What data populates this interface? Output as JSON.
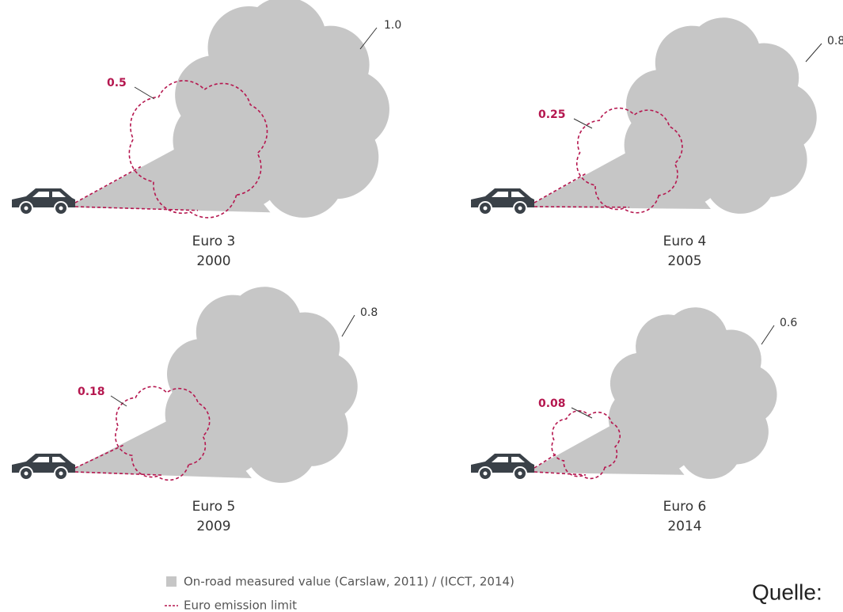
{
  "panels": [
    {
      "name": "Euro 3",
      "year": "2000",
      "measured": "1.0",
      "limit": "0.5"
    },
    {
      "name": "Euro 4",
      "year": "2005",
      "measured": "0.8",
      "limit": "0.25"
    },
    {
      "name": "Euro 5",
      "year": "2009",
      "measured": "0.8",
      "limit": "0.18"
    },
    {
      "name": "Euro 6",
      "year": "2014",
      "measured": "0.6",
      "limit": "0.08"
    }
  ],
  "legend": [
    "On-road measured value (Carslaw, 2011) / (ICCT, 2014)",
    "Euro emission limit"
  ],
  "source": "Quelle:"
}
